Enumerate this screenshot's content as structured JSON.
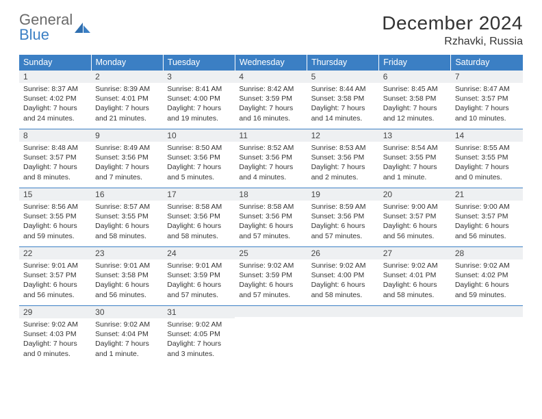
{
  "brand": {
    "word1": "General",
    "word2": "Blue"
  },
  "title": "December 2024",
  "location": "Rzhavki, Russia",
  "colors": {
    "header_bg": "#3b7fc4",
    "header_text": "#ffffff",
    "daynum_bg": "#eef0f2",
    "border": "#3b7fc4",
    "logo_gray": "#6a6a6a",
    "logo_blue": "#3b7fc4"
  },
  "weekdays": [
    "Sunday",
    "Monday",
    "Tuesday",
    "Wednesday",
    "Thursday",
    "Friday",
    "Saturday"
  ],
  "weeks": [
    [
      {
        "n": "1",
        "sr": "Sunrise: 8:37 AM",
        "ss": "Sunset: 4:02 PM",
        "dl": "Daylight: 7 hours and 24 minutes."
      },
      {
        "n": "2",
        "sr": "Sunrise: 8:39 AM",
        "ss": "Sunset: 4:01 PM",
        "dl": "Daylight: 7 hours and 21 minutes."
      },
      {
        "n": "3",
        "sr": "Sunrise: 8:41 AM",
        "ss": "Sunset: 4:00 PM",
        "dl": "Daylight: 7 hours and 19 minutes."
      },
      {
        "n": "4",
        "sr": "Sunrise: 8:42 AM",
        "ss": "Sunset: 3:59 PM",
        "dl": "Daylight: 7 hours and 16 minutes."
      },
      {
        "n": "5",
        "sr": "Sunrise: 8:44 AM",
        "ss": "Sunset: 3:58 PM",
        "dl": "Daylight: 7 hours and 14 minutes."
      },
      {
        "n": "6",
        "sr": "Sunrise: 8:45 AM",
        "ss": "Sunset: 3:58 PM",
        "dl": "Daylight: 7 hours and 12 minutes."
      },
      {
        "n": "7",
        "sr": "Sunrise: 8:47 AM",
        "ss": "Sunset: 3:57 PM",
        "dl": "Daylight: 7 hours and 10 minutes."
      }
    ],
    [
      {
        "n": "8",
        "sr": "Sunrise: 8:48 AM",
        "ss": "Sunset: 3:57 PM",
        "dl": "Daylight: 7 hours and 8 minutes."
      },
      {
        "n": "9",
        "sr": "Sunrise: 8:49 AM",
        "ss": "Sunset: 3:56 PM",
        "dl": "Daylight: 7 hours and 7 minutes."
      },
      {
        "n": "10",
        "sr": "Sunrise: 8:50 AM",
        "ss": "Sunset: 3:56 PM",
        "dl": "Daylight: 7 hours and 5 minutes."
      },
      {
        "n": "11",
        "sr": "Sunrise: 8:52 AM",
        "ss": "Sunset: 3:56 PM",
        "dl": "Daylight: 7 hours and 4 minutes."
      },
      {
        "n": "12",
        "sr": "Sunrise: 8:53 AM",
        "ss": "Sunset: 3:56 PM",
        "dl": "Daylight: 7 hours and 2 minutes."
      },
      {
        "n": "13",
        "sr": "Sunrise: 8:54 AM",
        "ss": "Sunset: 3:55 PM",
        "dl": "Daylight: 7 hours and 1 minute."
      },
      {
        "n": "14",
        "sr": "Sunrise: 8:55 AM",
        "ss": "Sunset: 3:55 PM",
        "dl": "Daylight: 7 hours and 0 minutes."
      }
    ],
    [
      {
        "n": "15",
        "sr": "Sunrise: 8:56 AM",
        "ss": "Sunset: 3:55 PM",
        "dl": "Daylight: 6 hours and 59 minutes."
      },
      {
        "n": "16",
        "sr": "Sunrise: 8:57 AM",
        "ss": "Sunset: 3:55 PM",
        "dl": "Daylight: 6 hours and 58 minutes."
      },
      {
        "n": "17",
        "sr": "Sunrise: 8:58 AM",
        "ss": "Sunset: 3:56 PM",
        "dl": "Daylight: 6 hours and 58 minutes."
      },
      {
        "n": "18",
        "sr": "Sunrise: 8:58 AM",
        "ss": "Sunset: 3:56 PM",
        "dl": "Daylight: 6 hours and 57 minutes."
      },
      {
        "n": "19",
        "sr": "Sunrise: 8:59 AM",
        "ss": "Sunset: 3:56 PM",
        "dl": "Daylight: 6 hours and 57 minutes."
      },
      {
        "n": "20",
        "sr": "Sunrise: 9:00 AM",
        "ss": "Sunset: 3:57 PM",
        "dl": "Daylight: 6 hours and 56 minutes."
      },
      {
        "n": "21",
        "sr": "Sunrise: 9:00 AM",
        "ss": "Sunset: 3:57 PM",
        "dl": "Daylight: 6 hours and 56 minutes."
      }
    ],
    [
      {
        "n": "22",
        "sr": "Sunrise: 9:01 AM",
        "ss": "Sunset: 3:57 PM",
        "dl": "Daylight: 6 hours and 56 minutes."
      },
      {
        "n": "23",
        "sr": "Sunrise: 9:01 AM",
        "ss": "Sunset: 3:58 PM",
        "dl": "Daylight: 6 hours and 56 minutes."
      },
      {
        "n": "24",
        "sr": "Sunrise: 9:01 AM",
        "ss": "Sunset: 3:59 PM",
        "dl": "Daylight: 6 hours and 57 minutes."
      },
      {
        "n": "25",
        "sr": "Sunrise: 9:02 AM",
        "ss": "Sunset: 3:59 PM",
        "dl": "Daylight: 6 hours and 57 minutes."
      },
      {
        "n": "26",
        "sr": "Sunrise: 9:02 AM",
        "ss": "Sunset: 4:00 PM",
        "dl": "Daylight: 6 hours and 58 minutes."
      },
      {
        "n": "27",
        "sr": "Sunrise: 9:02 AM",
        "ss": "Sunset: 4:01 PM",
        "dl": "Daylight: 6 hours and 58 minutes."
      },
      {
        "n": "28",
        "sr": "Sunrise: 9:02 AM",
        "ss": "Sunset: 4:02 PM",
        "dl": "Daylight: 6 hours and 59 minutes."
      }
    ],
    [
      {
        "n": "29",
        "sr": "Sunrise: 9:02 AM",
        "ss": "Sunset: 4:03 PM",
        "dl": "Daylight: 7 hours and 0 minutes."
      },
      {
        "n": "30",
        "sr": "Sunrise: 9:02 AM",
        "ss": "Sunset: 4:04 PM",
        "dl": "Daylight: 7 hours and 1 minute."
      },
      {
        "n": "31",
        "sr": "Sunrise: 9:02 AM",
        "ss": "Sunset: 4:05 PM",
        "dl": "Daylight: 7 hours and 3 minutes."
      },
      {
        "n": "",
        "sr": "",
        "ss": "",
        "dl": ""
      },
      {
        "n": "",
        "sr": "",
        "ss": "",
        "dl": ""
      },
      {
        "n": "",
        "sr": "",
        "ss": "",
        "dl": ""
      },
      {
        "n": "",
        "sr": "",
        "ss": "",
        "dl": ""
      }
    ]
  ]
}
